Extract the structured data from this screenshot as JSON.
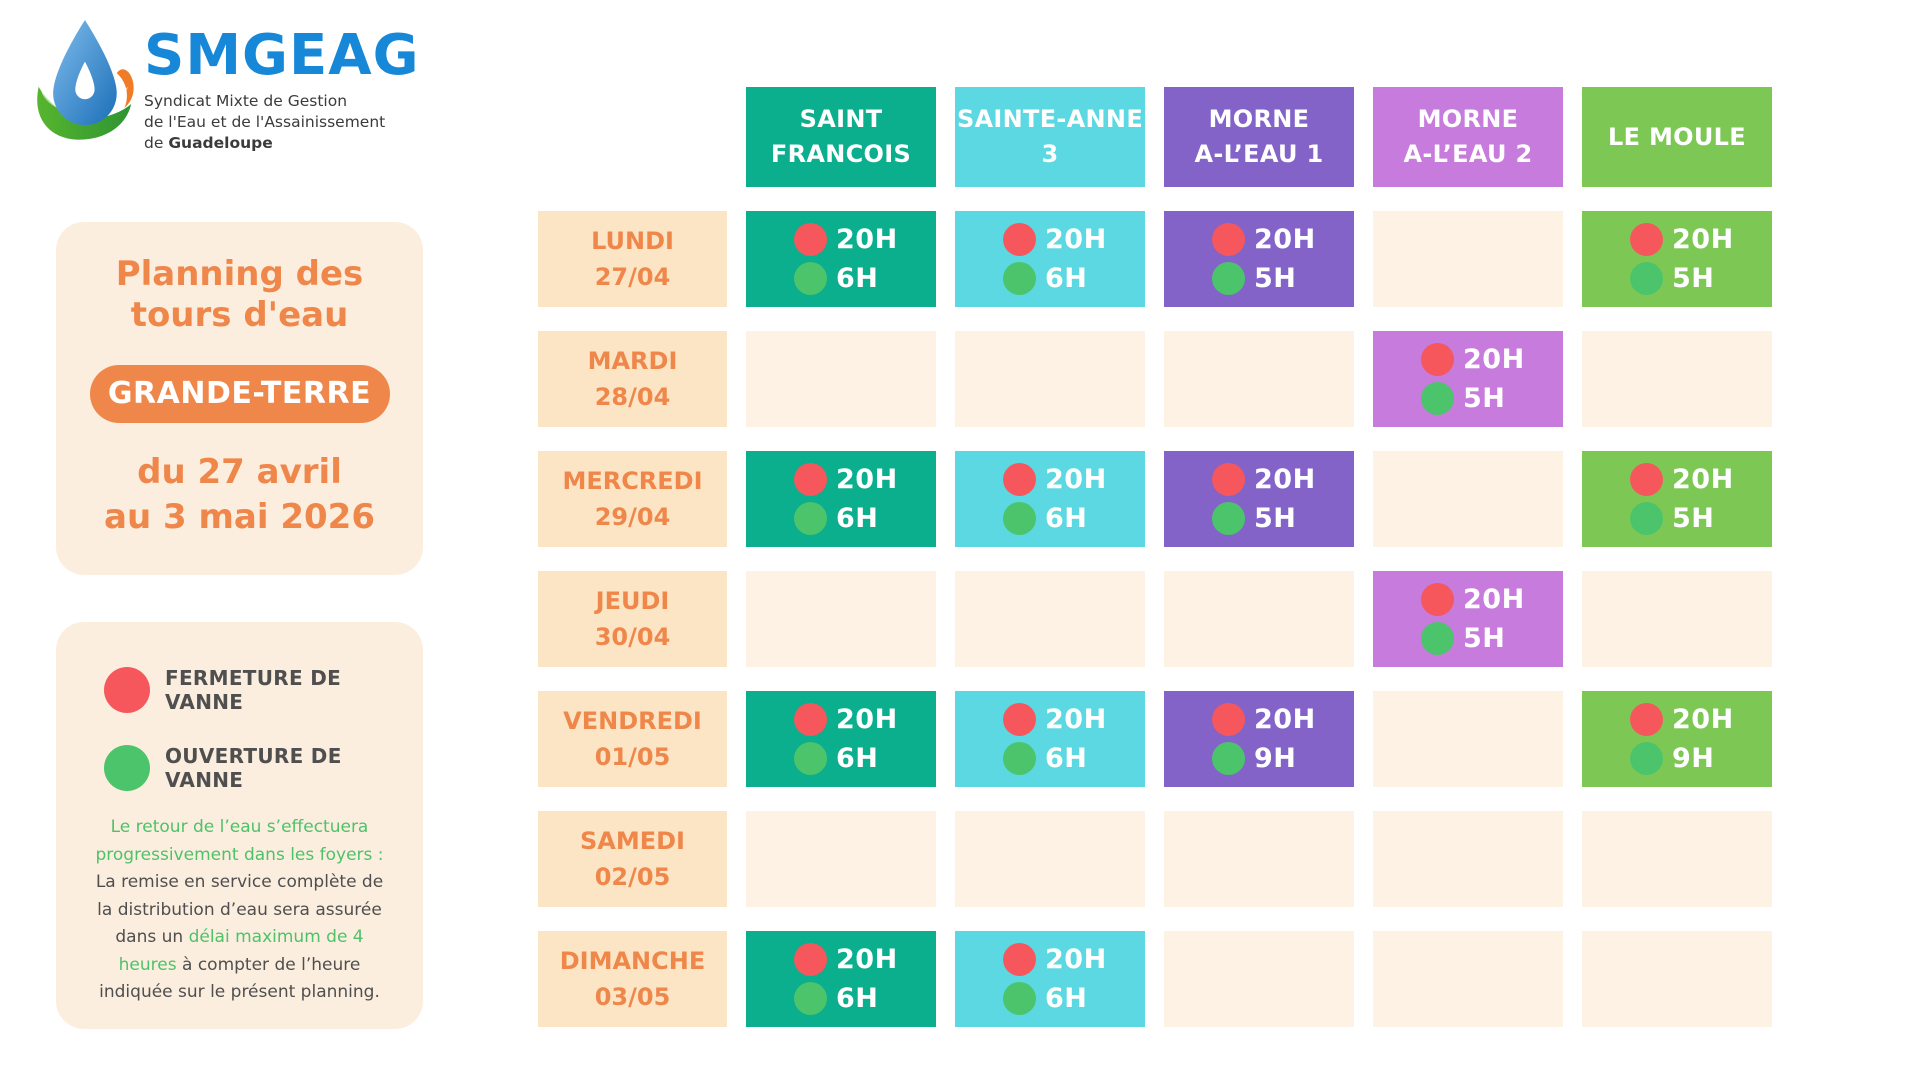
{
  "colors": {
    "brand_blue": "#1787D8",
    "orange": "#EF874B",
    "panel_bg": "#FBEEDE",
    "day_label_bg": "#FCE5C4",
    "empty_cell_bg": "#FDF2E3",
    "red_dot": "#F6575C",
    "green_dot": "#4CC46B",
    "note_green": "#4EC269",
    "dark_text": "#4F4F4F"
  },
  "logo": {
    "brand": "SMGEAG",
    "subtitle_line1": "Syndicat Mixte de Gestion",
    "subtitle_line2": "de l'Eau et de l'Assainissement",
    "subtitle_line3_prefix": "de ",
    "subtitle_line3_bold": "Guadeloupe"
  },
  "title_panel": {
    "title_line1": "Planning des",
    "title_line2": "tours d'eau",
    "region_badge": "GRANDE-TERRE",
    "period_line1": "du 27 avril",
    "period_line2": "au 3 mai 2026"
  },
  "legend_panel": {
    "items": [
      {
        "icon": "red-dot",
        "label": "FERMETURE DE VANNE"
      },
      {
        "icon": "green-dot",
        "label": "OUVERTURE DE VANNE"
      }
    ],
    "note_segments": [
      {
        "text": "Le retour de l’eau s’effectuera progressivement dans les foyers :",
        "color": "green"
      },
      {
        "text": " La remise en service complète de la distribution d’eau sera assurée dans un ",
        "color": "dark"
      },
      {
        "text": "délai maximum de 4 heures",
        "color": "green"
      },
      {
        "text": " à compter de l’heure indiquée sur le présent planning.",
        "color": "dark"
      }
    ]
  },
  "schedule": {
    "columns": [
      {
        "id": "saint-francois",
        "line1": "SAINT",
        "line2": "FRANCOIS",
        "color": "#0BAE8D"
      },
      {
        "id": "sainte-anne-3",
        "line1": "SAINTE-ANNE",
        "line2": "3",
        "color": "#5BD8E1"
      },
      {
        "id": "morne-a-leau-1",
        "line1": "MORNE",
        "line2": "A-L’EAU 1",
        "color": "#8363C8"
      },
      {
        "id": "morne-a-leau-2",
        "line1": "MORNE",
        "line2": "A-L’EAU 2",
        "color": "#C77BDC"
      },
      {
        "id": "le-moule",
        "line1": "LE MOULE",
        "line2": "",
        "color": "#7DC855"
      }
    ],
    "rows": [
      {
        "day": "LUNDI",
        "date": "27/04",
        "cells": [
          {
            "close": "20H",
            "open": "6H"
          },
          {
            "close": "20H",
            "open": "6H"
          },
          {
            "close": "20H",
            "open": "5H"
          },
          null,
          {
            "close": "20H",
            "open": "5H"
          }
        ]
      },
      {
        "day": "MARDI",
        "date": "28/04",
        "cells": [
          null,
          null,
          null,
          {
            "close": "20H",
            "open": "5H"
          },
          null
        ]
      },
      {
        "day": "MERCREDI",
        "date": "29/04",
        "cells": [
          {
            "close": "20H",
            "open": "6H"
          },
          {
            "close": "20H",
            "open": "6H"
          },
          {
            "close": "20H",
            "open": "5H"
          },
          null,
          {
            "close": "20H",
            "open": "5H"
          }
        ]
      },
      {
        "day": "JEUDI",
        "date": "30/04",
        "cells": [
          null,
          null,
          null,
          {
            "close": "20H",
            "open": "5H"
          },
          null
        ]
      },
      {
        "day": "VENDREDI",
        "date": "01/05",
        "cells": [
          {
            "close": "20H",
            "open": "6H"
          },
          {
            "close": "20H",
            "open": "6H"
          },
          {
            "close": "20H",
            "open": "9H"
          },
          null,
          {
            "close": "20H",
            "open": "9H"
          }
        ]
      },
      {
        "day": "SAMEDI",
        "date": "02/05",
        "cells": [
          null,
          null,
          null,
          null,
          null
        ]
      },
      {
        "day": "DIMANCHE",
        "date": "03/05",
        "cells": [
          {
            "close": "20H",
            "open": "6H"
          },
          {
            "close": "20H",
            "open": "6H"
          },
          null,
          null,
          null
        ]
      }
    ]
  }
}
